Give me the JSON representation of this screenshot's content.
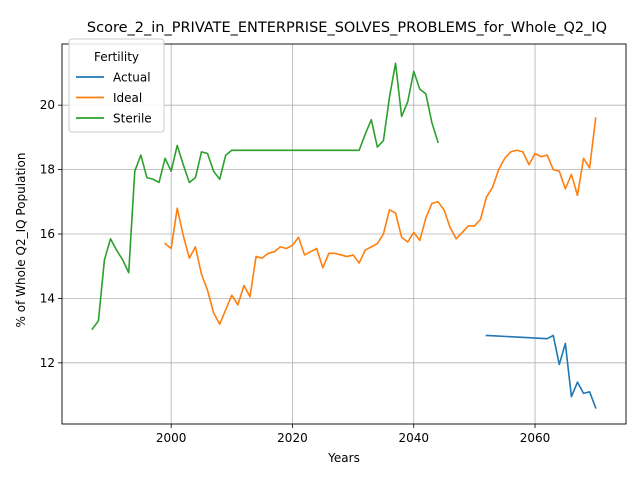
{
  "chart_data": {
    "type": "line",
    "title": "Score_2_in_PRIVATE_ENTERPRISE_SOLVES_PROBLEMS_for_Whole_Q2_IQ",
    "xlabel": "Years",
    "ylabel": "% of Whole Q2_IQ Population",
    "xlim": [
      1982,
      2075
    ],
    "ylim": [
      10.1,
      21.9
    ],
    "xticks": [
      2000,
      2020,
      2040,
      2060
    ],
    "yticks": [
      12,
      14,
      16,
      18,
      20
    ],
    "grid": true,
    "legend": {
      "title": "Fertility",
      "placement": "top-left"
    },
    "series": [
      {
        "name": "Actual",
        "color": "#1f77b4",
        "x": [
          2052,
          2062,
          2063,
          2064,
          2065,
          2066,
          2067,
          2068,
          2069,
          2070
        ],
        "y": [
          12.85,
          12.75,
          12.85,
          11.95,
          12.6,
          10.95,
          11.4,
          11.05,
          11.1,
          10.6
        ]
      },
      {
        "name": "Ideal",
        "color": "#ff7f0e",
        "x": [
          1999,
          2000,
          2001,
          2002,
          2003,
          2004,
          2005,
          2006,
          2007,
          2008,
          2009,
          2010,
          2011,
          2012,
          2013,
          2014,
          2015,
          2016,
          2017,
          2018,
          2019,
          2020,
          2021,
          2022,
          2023,
          2024,
          2025,
          2026,
          2027,
          2028,
          2029,
          2030,
          2031,
          2032,
          2033,
          2034,
          2035,
          2036,
          2037,
          2038,
          2039,
          2040,
          2041,
          2042,
          2043,
          2044,
          2045,
          2046,
          2047,
          2048,
          2049,
          2050,
          2051,
          2052,
          2053,
          2054,
          2055,
          2056,
          2057,
          2058,
          2059,
          2060,
          2061,
          2062,
          2063,
          2064,
          2065,
          2066,
          2067,
          2068,
          2069,
          2070
        ],
        "y": [
          15.7,
          15.55,
          16.8,
          15.95,
          15.25,
          15.6,
          14.75,
          14.25,
          13.55,
          13.2,
          13.65,
          14.1,
          13.8,
          14.4,
          14.05,
          15.3,
          15.25,
          15.4,
          15.45,
          15.6,
          15.55,
          15.65,
          15.9,
          15.35,
          15.45,
          15.55,
          14.95,
          15.4,
          15.4,
          15.35,
          15.3,
          15.35,
          15.1,
          15.5,
          15.6,
          15.7,
          16.0,
          16.75,
          16.65,
          15.9,
          15.75,
          16.05,
          15.8,
          16.5,
          16.95,
          17.0,
          16.75,
          16.2,
          15.85,
          16.05,
          16.25,
          16.25,
          16.45,
          17.15,
          17.45,
          18.0,
          18.35,
          18.55,
          18.6,
          18.55,
          18.15,
          18.5,
          18.4,
          18.45,
          18.0,
          17.95,
          17.4,
          17.85,
          17.2,
          18.35,
          18.05,
          19.6
        ]
      },
      {
        "name": "Sterile",
        "color": "#2ca02c",
        "x": [
          1987,
          1988,
          1989,
          1990,
          1991,
          1992,
          1993,
          1994,
          1995,
          1996,
          1997,
          1998,
          1999,
          2000,
          2001,
          2002,
          2003,
          2004,
          2005,
          2006,
          2007,
          2008,
          2009,
          2010,
          2011,
          2012,
          2013,
          2014,
          2015,
          2016,
          2017,
          2018,
          2019,
          2020,
          2021,
          2022,
          2023,
          2024,
          2025,
          2026,
          2027,
          2028,
          2029,
          2030,
          2031,
          2032,
          2033,
          2034,
          2035,
          2036,
          2037,
          2038,
          2039,
          2040,
          2041,
          2042,
          2043,
          2044
        ],
        "y": [
          13.05,
          13.3,
          15.2,
          15.85,
          15.5,
          15.2,
          14.8,
          17.95,
          18.45,
          17.75,
          17.7,
          17.6,
          18.35,
          17.95,
          18.75,
          18.15,
          17.6,
          17.75,
          18.55,
          18.5,
          17.95,
          17.7,
          18.45,
          18.6,
          18.6,
          18.6,
          18.6,
          18.6,
          18.6,
          18.6,
          18.6,
          18.6,
          18.6,
          18.6,
          18.6,
          18.6,
          18.6,
          18.6,
          18.6,
          18.6,
          18.6,
          18.6,
          18.6,
          18.6,
          18.6,
          19.1,
          19.55,
          18.7,
          18.9,
          20.25,
          21.3,
          19.65,
          20.1,
          21.05,
          20.5,
          20.35,
          19.45,
          18.85
        ]
      }
    ]
  }
}
